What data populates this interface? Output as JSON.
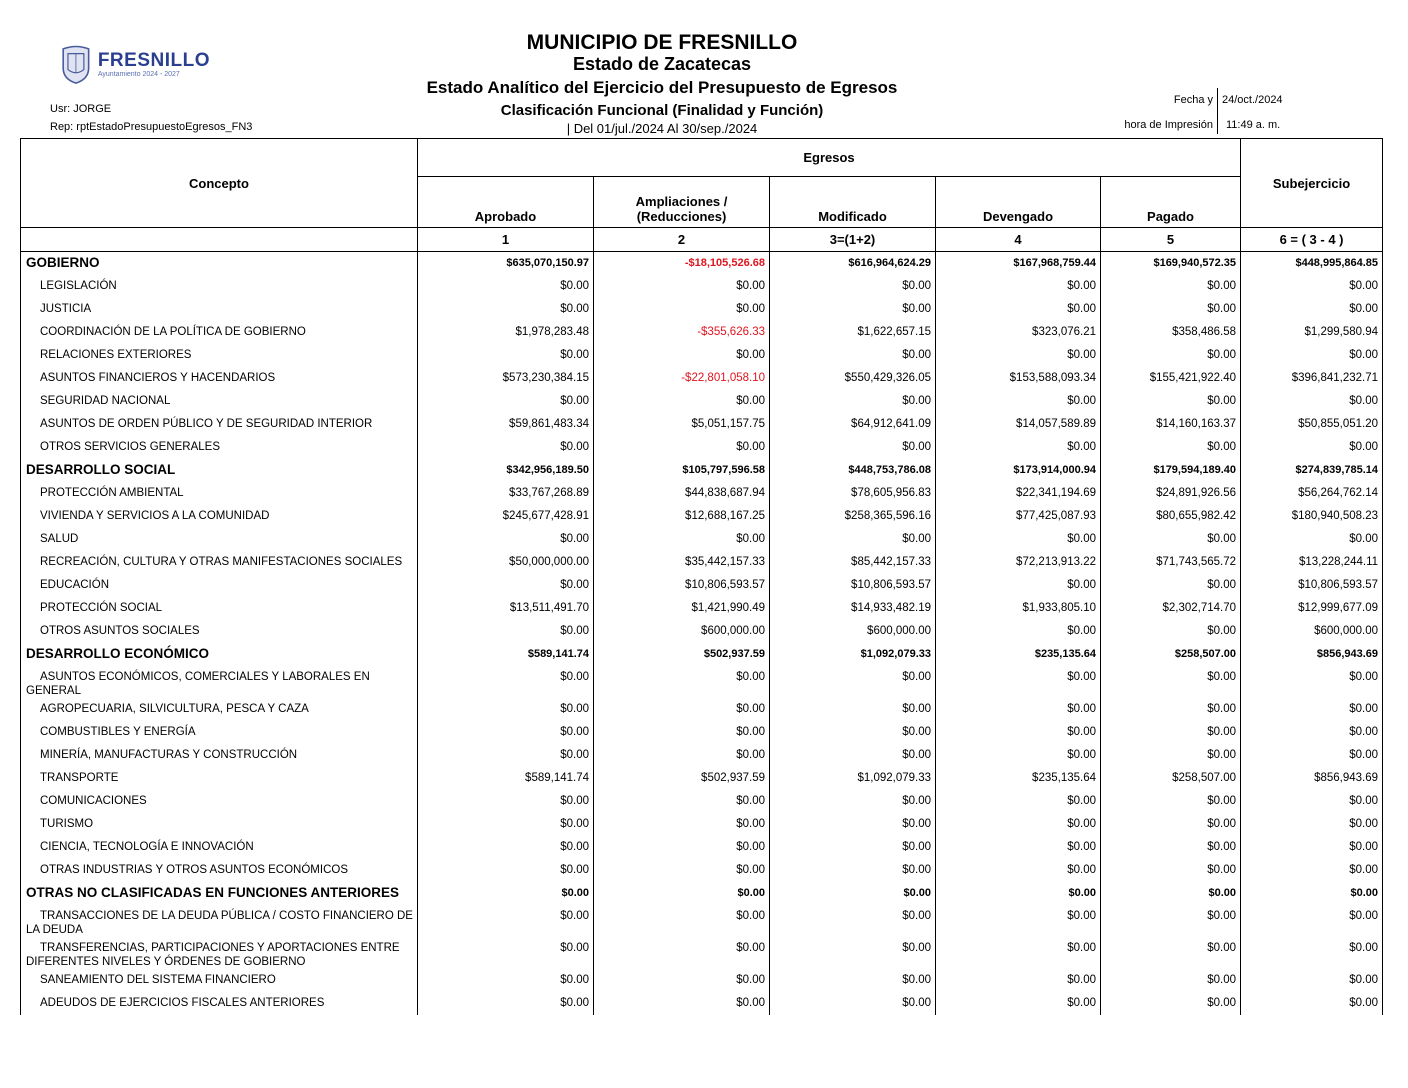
{
  "header": {
    "logo_text": "FRESNILLO",
    "logo_subtext": "Ayuntamiento 2024 - 2027",
    "title": "MUNICIPIO DE FRESNILLO",
    "state": "Estado de Zacatecas",
    "report_title": "Estado Analítico del Ejercicio del Presupuesto de Egresos",
    "classification": "Clasificación Funcional (Finalidad y Función)",
    "period": "| Del 01/jul./2024 Al 30/sep./2024",
    "user": "Usr: JORGE",
    "report": "Rep: rptEstadoPresupuestoEgresos_FN3",
    "fecha_label": "Fecha y",
    "hora_label": "hora de Impresión",
    "fecha_value": "24/oct./2024",
    "hora_value": "11:49 a. m."
  },
  "table": {
    "concepto": "Concepto",
    "egresos": "Egresos",
    "subejercicio": "Subejercicio",
    "columns": [
      "Aprobado",
      "Ampliaciones /\n(Reducciones)",
      "Modificado",
      "Devengado",
      "Pagado"
    ],
    "column_numbers": [
      "1",
      "2",
      "3=(1+2)",
      "4",
      "5",
      "6 = ( 3 - 4 )"
    ],
    "negative_color": "#e0141e",
    "rows": [
      {
        "type": "group",
        "label": "GOBIERNO",
        "values": [
          "$635,070,150.97",
          "-$18,105,526.68",
          "$616,964,624.29",
          "$167,968,759.44",
          "$169,940,572.35",
          "$448,995,864.85"
        ]
      },
      {
        "type": "item",
        "label": "LEGISLACIÓN",
        "values": [
          "$0.00",
          "$0.00",
          "$0.00",
          "$0.00",
          "$0.00",
          "$0.00"
        ]
      },
      {
        "type": "item",
        "label": "JUSTICIA",
        "values": [
          "$0.00",
          "$0.00",
          "$0.00",
          "$0.00",
          "$0.00",
          "$0.00"
        ]
      },
      {
        "type": "item",
        "label": "COORDINACIÓN DE LA POLÍTICA DE GOBIERNO",
        "values": [
          "$1,978,283.48",
          "-$355,626.33",
          "$1,622,657.15",
          "$323,076.21",
          "$358,486.58",
          "$1,299,580.94"
        ]
      },
      {
        "type": "item",
        "label": "RELACIONES EXTERIORES",
        "values": [
          "$0.00",
          "$0.00",
          "$0.00",
          "$0.00",
          "$0.00",
          "$0.00"
        ]
      },
      {
        "type": "item",
        "label": "ASUNTOS FINANCIEROS Y HACENDARIOS",
        "values": [
          "$573,230,384.15",
          "-$22,801,058.10",
          "$550,429,326.05",
          "$153,588,093.34",
          "$155,421,922.40",
          "$396,841,232.71"
        ]
      },
      {
        "type": "item",
        "label": "SEGURIDAD NACIONAL",
        "values": [
          "$0.00",
          "$0.00",
          "$0.00",
          "$0.00",
          "$0.00",
          "$0.00"
        ]
      },
      {
        "type": "item",
        "label": "ASUNTOS DE ORDEN PÚBLICO Y DE SEGURIDAD INTERIOR",
        "values": [
          "$59,861,483.34",
          "$5,051,157.75",
          "$64,912,641.09",
          "$14,057,589.89",
          "$14,160,163.37",
          "$50,855,051.20"
        ]
      },
      {
        "type": "item",
        "label": "OTROS SERVICIOS GENERALES",
        "values": [
          "$0.00",
          "$0.00",
          "$0.00",
          "$0.00",
          "$0.00",
          "$0.00"
        ]
      },
      {
        "type": "group",
        "label": "DESARROLLO SOCIAL",
        "values": [
          "$342,956,189.50",
          "$105,797,596.58",
          "$448,753,786.08",
          "$173,914,000.94",
          "$179,594,189.40",
          "$274,839,785.14"
        ]
      },
      {
        "type": "item",
        "label": "PROTECCIÓN AMBIENTAL",
        "values": [
          "$33,767,268.89",
          "$44,838,687.94",
          "$78,605,956.83",
          "$22,341,194.69",
          "$24,891,926.56",
          "$56,264,762.14"
        ]
      },
      {
        "type": "item",
        "label": "VIVIENDA Y SERVICIOS  A LA COMUNIDAD",
        "values": [
          "$245,677,428.91",
          "$12,688,167.25",
          "$258,365,596.16",
          "$77,425,087.93",
          "$80,655,982.42",
          "$180,940,508.23"
        ]
      },
      {
        "type": "item",
        "label": "SALUD",
        "values": [
          "$0.00",
          "$0.00",
          "$0.00",
          "$0.00",
          "$0.00",
          "$0.00"
        ]
      },
      {
        "type": "item",
        "label": "RECREACIÓN, CULTURA Y OTRAS MANIFESTACIONES SOCIALES",
        "values": [
          "$50,000,000.00",
          "$35,442,157.33",
          "$85,442,157.33",
          "$72,213,913.22",
          "$71,743,565.72",
          "$13,228,244.11"
        ]
      },
      {
        "type": "item",
        "label": "EDUCACIÓN",
        "values": [
          "$0.00",
          "$10,806,593.57",
          "$10,806,593.57",
          "$0.00",
          "$0.00",
          "$10,806,593.57"
        ]
      },
      {
        "type": "item",
        "label": "PROTECCIÓN SOCIAL",
        "values": [
          "$13,511,491.70",
          "$1,421,990.49",
          "$14,933,482.19",
          "$1,933,805.10",
          "$2,302,714.70",
          "$12,999,677.09"
        ]
      },
      {
        "type": "item",
        "label": "OTROS ASUNTOS SOCIALES",
        "values": [
          "$0.00",
          "$600,000.00",
          "$600,000.00",
          "$0.00",
          "$0.00",
          "$600,000.00"
        ]
      },
      {
        "type": "group",
        "label": "DESARROLLO ECONÓMICO",
        "values": [
          "$589,141.74",
          "$502,937.59",
          "$1,092,079.33",
          "$235,135.64",
          "$258,507.00",
          "$856,943.69"
        ]
      },
      {
        "type": "item",
        "label": "ASUNTOS ECONÓMICOS, COMERCIALES Y LABORALES EN GENERAL",
        "values": [
          "$0.00",
          "$0.00",
          "$0.00",
          "$0.00",
          "$0.00",
          "$0.00"
        ]
      },
      {
        "type": "item",
        "label": "AGROPECUARIA, SILVICULTURA, PESCA Y CAZA",
        "values": [
          "$0.00",
          "$0.00",
          "$0.00",
          "$0.00",
          "$0.00",
          "$0.00"
        ]
      },
      {
        "type": "item",
        "label": "COMBUSTIBLES Y ENERGÍA",
        "values": [
          "$0.00",
          "$0.00",
          "$0.00",
          "$0.00",
          "$0.00",
          "$0.00"
        ]
      },
      {
        "type": "item",
        "label": "MINERÍA, MANUFACTURAS Y CONSTRUCCIÓN",
        "values": [
          "$0.00",
          "$0.00",
          "$0.00",
          "$0.00",
          "$0.00",
          "$0.00"
        ]
      },
      {
        "type": "item",
        "label": "TRANSPORTE",
        "values": [
          "$589,141.74",
          "$502,937.59",
          "$1,092,079.33",
          "$235,135.64",
          "$258,507.00",
          "$856,943.69"
        ]
      },
      {
        "type": "item",
        "label": "COMUNICACIONES",
        "values": [
          "$0.00",
          "$0.00",
          "$0.00",
          "$0.00",
          "$0.00",
          "$0.00"
        ]
      },
      {
        "type": "item",
        "label": "TURISMO",
        "values": [
          "$0.00",
          "$0.00",
          "$0.00",
          "$0.00",
          "$0.00",
          "$0.00"
        ]
      },
      {
        "type": "item",
        "label": "CIENCIA, TECNOLOGÍA E INNOVACIÓN",
        "values": [
          "$0.00",
          "$0.00",
          "$0.00",
          "$0.00",
          "$0.00",
          "$0.00"
        ]
      },
      {
        "type": "item",
        "label": "OTRAS INDUSTRIAS Y OTROS ASUNTOS ECONÓMICOS",
        "values": [
          "$0.00",
          "$0.00",
          "$0.00",
          "$0.00",
          "$0.00",
          "$0.00"
        ]
      },
      {
        "type": "group",
        "label": "OTRAS NO CLASIFICADAS EN FUNCIONES ANTERIORES",
        "values": [
          "$0.00",
          "$0.00",
          "$0.00",
          "$0.00",
          "$0.00",
          "$0.00"
        ]
      },
      {
        "type": "item",
        "label": "TRANSACCIONES DE LA DEUDA PÚBLICA / COSTO FINANCIERO DE LA DEUDA",
        "values": [
          "$0.00",
          "$0.00",
          "$0.00",
          "$0.00",
          "$0.00",
          "$0.00"
        ]
      },
      {
        "type": "item",
        "label": "TRANSFERENCIAS, PARTICIPACIONES Y APORTACIONES ENTRE DIFERENTES NIVELES Y ÓRDENES DE GOBIERNO",
        "values": [
          "$0.00",
          "$0.00",
          "$0.00",
          "$0.00",
          "$0.00",
          "$0.00"
        ]
      },
      {
        "type": "item",
        "label": "SANEAMIENTO DEL SISTEMA FINANCIERO",
        "values": [
          "$0.00",
          "$0.00",
          "$0.00",
          "$0.00",
          "$0.00",
          "$0.00"
        ]
      },
      {
        "type": "item",
        "label": "ADEUDOS DE EJERCICIOS FISCALES ANTERIORES",
        "values": [
          "$0.00",
          "$0.00",
          "$0.00",
          "$0.00",
          "$0.00",
          "$0.00"
        ]
      }
    ]
  }
}
